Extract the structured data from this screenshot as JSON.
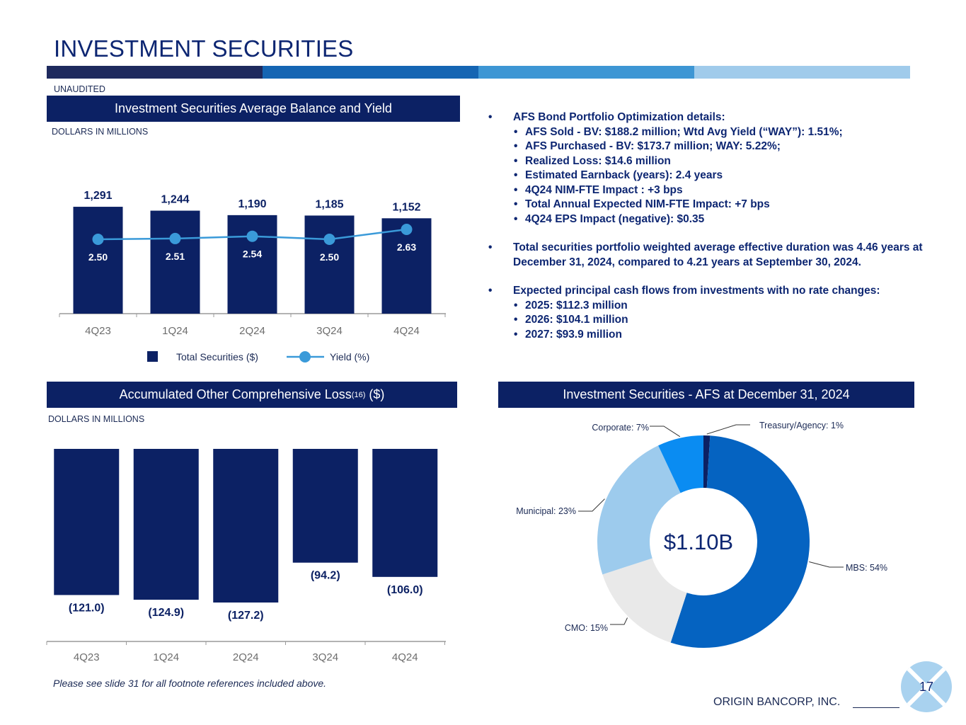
{
  "title": "INVESTMENT SECURITIES",
  "color_bar": [
    "#1e2a5e",
    "#1565b3",
    "#3d96d4",
    "#a0cbeb"
  ],
  "unaudited": "UNAUDITED",
  "top_chart_header": "Investment Securities Average Balance and Yield",
  "top_chart_units": "DOLLARS IN MILLIONS",
  "bottom_chart_header": {
    "text": "Accumulated Other Comprehensive Loss",
    "sup": "(16)",
    "suffix": " ($)"
  },
  "bottom_chart_units": "DOLLARS IN MILLIONS",
  "pie_header": "Investment Securities - AFS at December 31, 2024",
  "bullets": {
    "b1": "AFS Bond Portfolio Optimization details:",
    "b1_subs": [
      "AFS Sold - BV: $188.2 million; Wtd Avg Yield (“WAY”): 1.51%;",
      "AFS Purchased - BV: $173.7 million; WAY: 5.22%;",
      "Realized Loss: $14.6 million",
      "Estimated Earnback (years): 2.4 years",
      "4Q24 NIM-FTE Impact : +3 bps",
      "Total Annual Expected NIM-FTE Impact: +7 bps",
      "4Q24 EPS Impact (negative): $0.35"
    ],
    "b2": "Total securities portfolio weighted average effective duration was 4.46 years at December 31, 2024, compared to 4.21 years at September 30, 2024.",
    "b3": "Expected principal cash flows from investments with no rate changes:",
    "b3_subs": [
      "2025: $112.3 million",
      "2026: $104.1 million",
      "2027: $93.9 million"
    ]
  },
  "footnote": "Please see slide 31 for all footnote references included above.",
  "company": "ORIGIN BANCORP, INC.",
  "page_number": "17",
  "colors": {
    "navy": "#0c2164",
    "line": "#3a9ad9",
    "axis": "#9a9a9a"
  },
  "chart_data": [
    {
      "type": "bar",
      "title": "Investment Securities Average Balance and Yield",
      "categories": [
        "4Q23",
        "1Q24",
        "2Q24",
        "3Q24",
        "4Q24"
      ],
      "series": [
        {
          "name": "Total Securities ($)",
          "kind": "bar",
          "values": [
            1291,
            1244,
            1190,
            1185,
            1152
          ],
          "labels": [
            "1,291",
            "1,244",
            "1,190",
            "1,185",
            "1,152"
          ]
        },
        {
          "name": "Yield (%)",
          "kind": "line",
          "values": [
            2.5,
            2.51,
            2.54,
            2.5,
            2.63
          ],
          "labels": [
            "2.50",
            "2.51",
            "2.54",
            "2.50",
            "2.63"
          ]
        }
      ],
      "ylim": [
        0,
        1300
      ],
      "yield_lim": [
        0,
        5.0
      ],
      "legend": "bottom"
    },
    {
      "type": "bar",
      "title": "Accumulated Other Comprehensive Loss ($)",
      "categories": [
        "4Q23",
        "1Q24",
        "2Q24",
        "3Q24",
        "4Q24"
      ],
      "values": [
        -121.0,
        -124.9,
        -127.2,
        -94.2,
        -106.0
      ],
      "labels": [
        "(121.0)",
        "(124.9)",
        "(127.2)",
        "(94.2)",
        "(106.0)"
      ],
      "ylim": [
        -127.2,
        0
      ]
    },
    {
      "type": "pie",
      "title": "Investment Securities - AFS at December 31, 2024",
      "center_label": "$1.10B",
      "slices": [
        {
          "label": "Treasury/Agency: 1%",
          "value": 1,
          "color": "#0c2164"
        },
        {
          "label": "MBS: 54%",
          "value": 54,
          "color": "#0563c1"
        },
        {
          "label": "CMO: 15%",
          "value": 15,
          "color": "#e9e9e9"
        },
        {
          "label": "Municipal: 23%",
          "value": 23,
          "color": "#9dcbed"
        },
        {
          "label": "Corporate: 7%",
          "value": 7,
          "color": "#0a8cf2"
        }
      ]
    }
  ]
}
